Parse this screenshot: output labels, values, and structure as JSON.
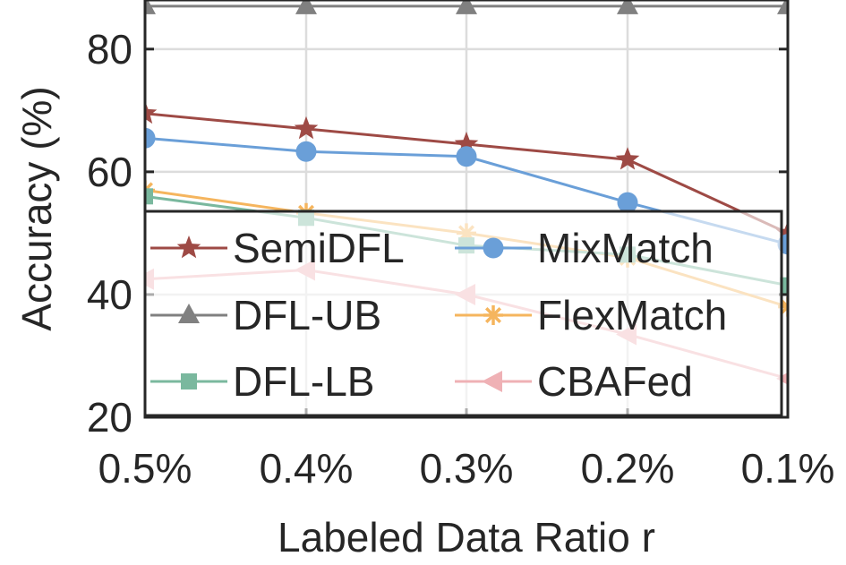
{
  "chart_data": {
    "type": "line",
    "title": "",
    "xlabel": "Labeled Data Ratio r",
    "ylabel": "Accuracy (%)",
    "categories": [
      "0.5%",
      "0.4%",
      "0.3%",
      "0.2%",
      "0.1%"
    ],
    "ylim": [
      20,
      88
    ],
    "yticks": [
      20,
      40,
      60,
      80
    ],
    "grid": true,
    "legend_position": "bottom, inside plot, two columns",
    "series": [
      {
        "name": "SemiDFL",
        "values": [
          69.5,
          67,
          64.5,
          62,
          50
        ],
        "color": "#9e4a45",
        "marker": "star"
      },
      {
        "name": "MixMatch",
        "values": [
          65.5,
          63.3,
          62.5,
          55,
          48.2
        ],
        "color": "#6a9fd8",
        "marker": "circle"
      },
      {
        "name": "DFL-UB",
        "values": [
          87,
          87,
          87,
          87,
          87
        ],
        "color": "#808080",
        "marker": "triangle-up"
      },
      {
        "name": "FlexMatch",
        "values": [
          57,
          53.3,
          50,
          46,
          38
        ],
        "color": "#f5b55e",
        "marker": "asterisk"
      },
      {
        "name": "DFL-LB",
        "values": [
          56,
          52.5,
          48,
          46.5,
          41.5
        ],
        "color": "#7ab89e",
        "marker": "square"
      },
      {
        "name": "CBAFed",
        "values": [
          42.5,
          44,
          40,
          33.5,
          26.3
        ],
        "color": "#efb1b5",
        "marker": "triangle-left"
      }
    ]
  }
}
